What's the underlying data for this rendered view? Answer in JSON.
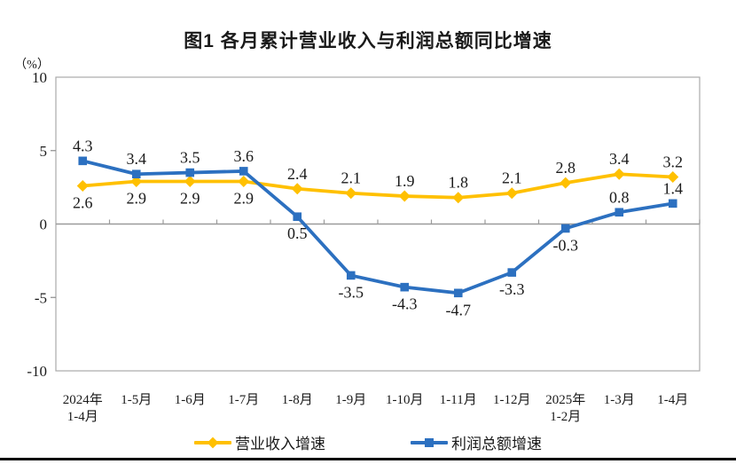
{
  "page": {
    "title": "图1  各月累计营业收入与利润总额同比增速",
    "unit_label": "（%）"
  },
  "chart_data": {
    "type": "line",
    "title": "图1  各月累计营业收入与利润总额同比增速",
    "ylabel": "（%）",
    "xlabel": "",
    "ylim": [
      -10,
      10
    ],
    "yticks": [
      10,
      5,
      0,
      -5,
      -10
    ],
    "grid": false,
    "legend_position": "bottom",
    "categories": [
      "2024年\n1-4月",
      "1-5月",
      "1-6月",
      "1-7月",
      "1-8月",
      "1-9月",
      "1-10月",
      "1-11月",
      "1-12月",
      "2025年\n1-2月",
      "1-3月",
      "1-4月"
    ],
    "series": [
      {
        "name": "营业收入增速",
        "color": "#FFC000",
        "marker": "diamond",
        "values": [
          2.6,
          2.9,
          2.9,
          2.9,
          2.4,
          2.1,
          1.9,
          1.8,
          2.1,
          2.8,
          3.4,
          3.2
        ],
        "label_positions": [
          "below",
          "below",
          "below",
          "below",
          "above",
          "above",
          "above",
          "above",
          "above",
          "above",
          "above",
          "above"
        ]
      },
      {
        "name": "利润总额增速",
        "color": "#2C70C0",
        "marker": "square",
        "values": [
          4.3,
          3.4,
          3.5,
          3.6,
          0.5,
          -3.5,
          -4.3,
          -4.7,
          -3.3,
          -0.3,
          0.8,
          1.4
        ],
        "label_positions": [
          "above",
          "above",
          "above",
          "above",
          "below",
          "below",
          "below",
          "below",
          "below",
          "below",
          "above",
          "above"
        ]
      }
    ],
    "axis_colors": {
      "box": "#ABABAB",
      "zero_line": "#9B9B9B",
      "tick": "#8C8C8C"
    }
  }
}
